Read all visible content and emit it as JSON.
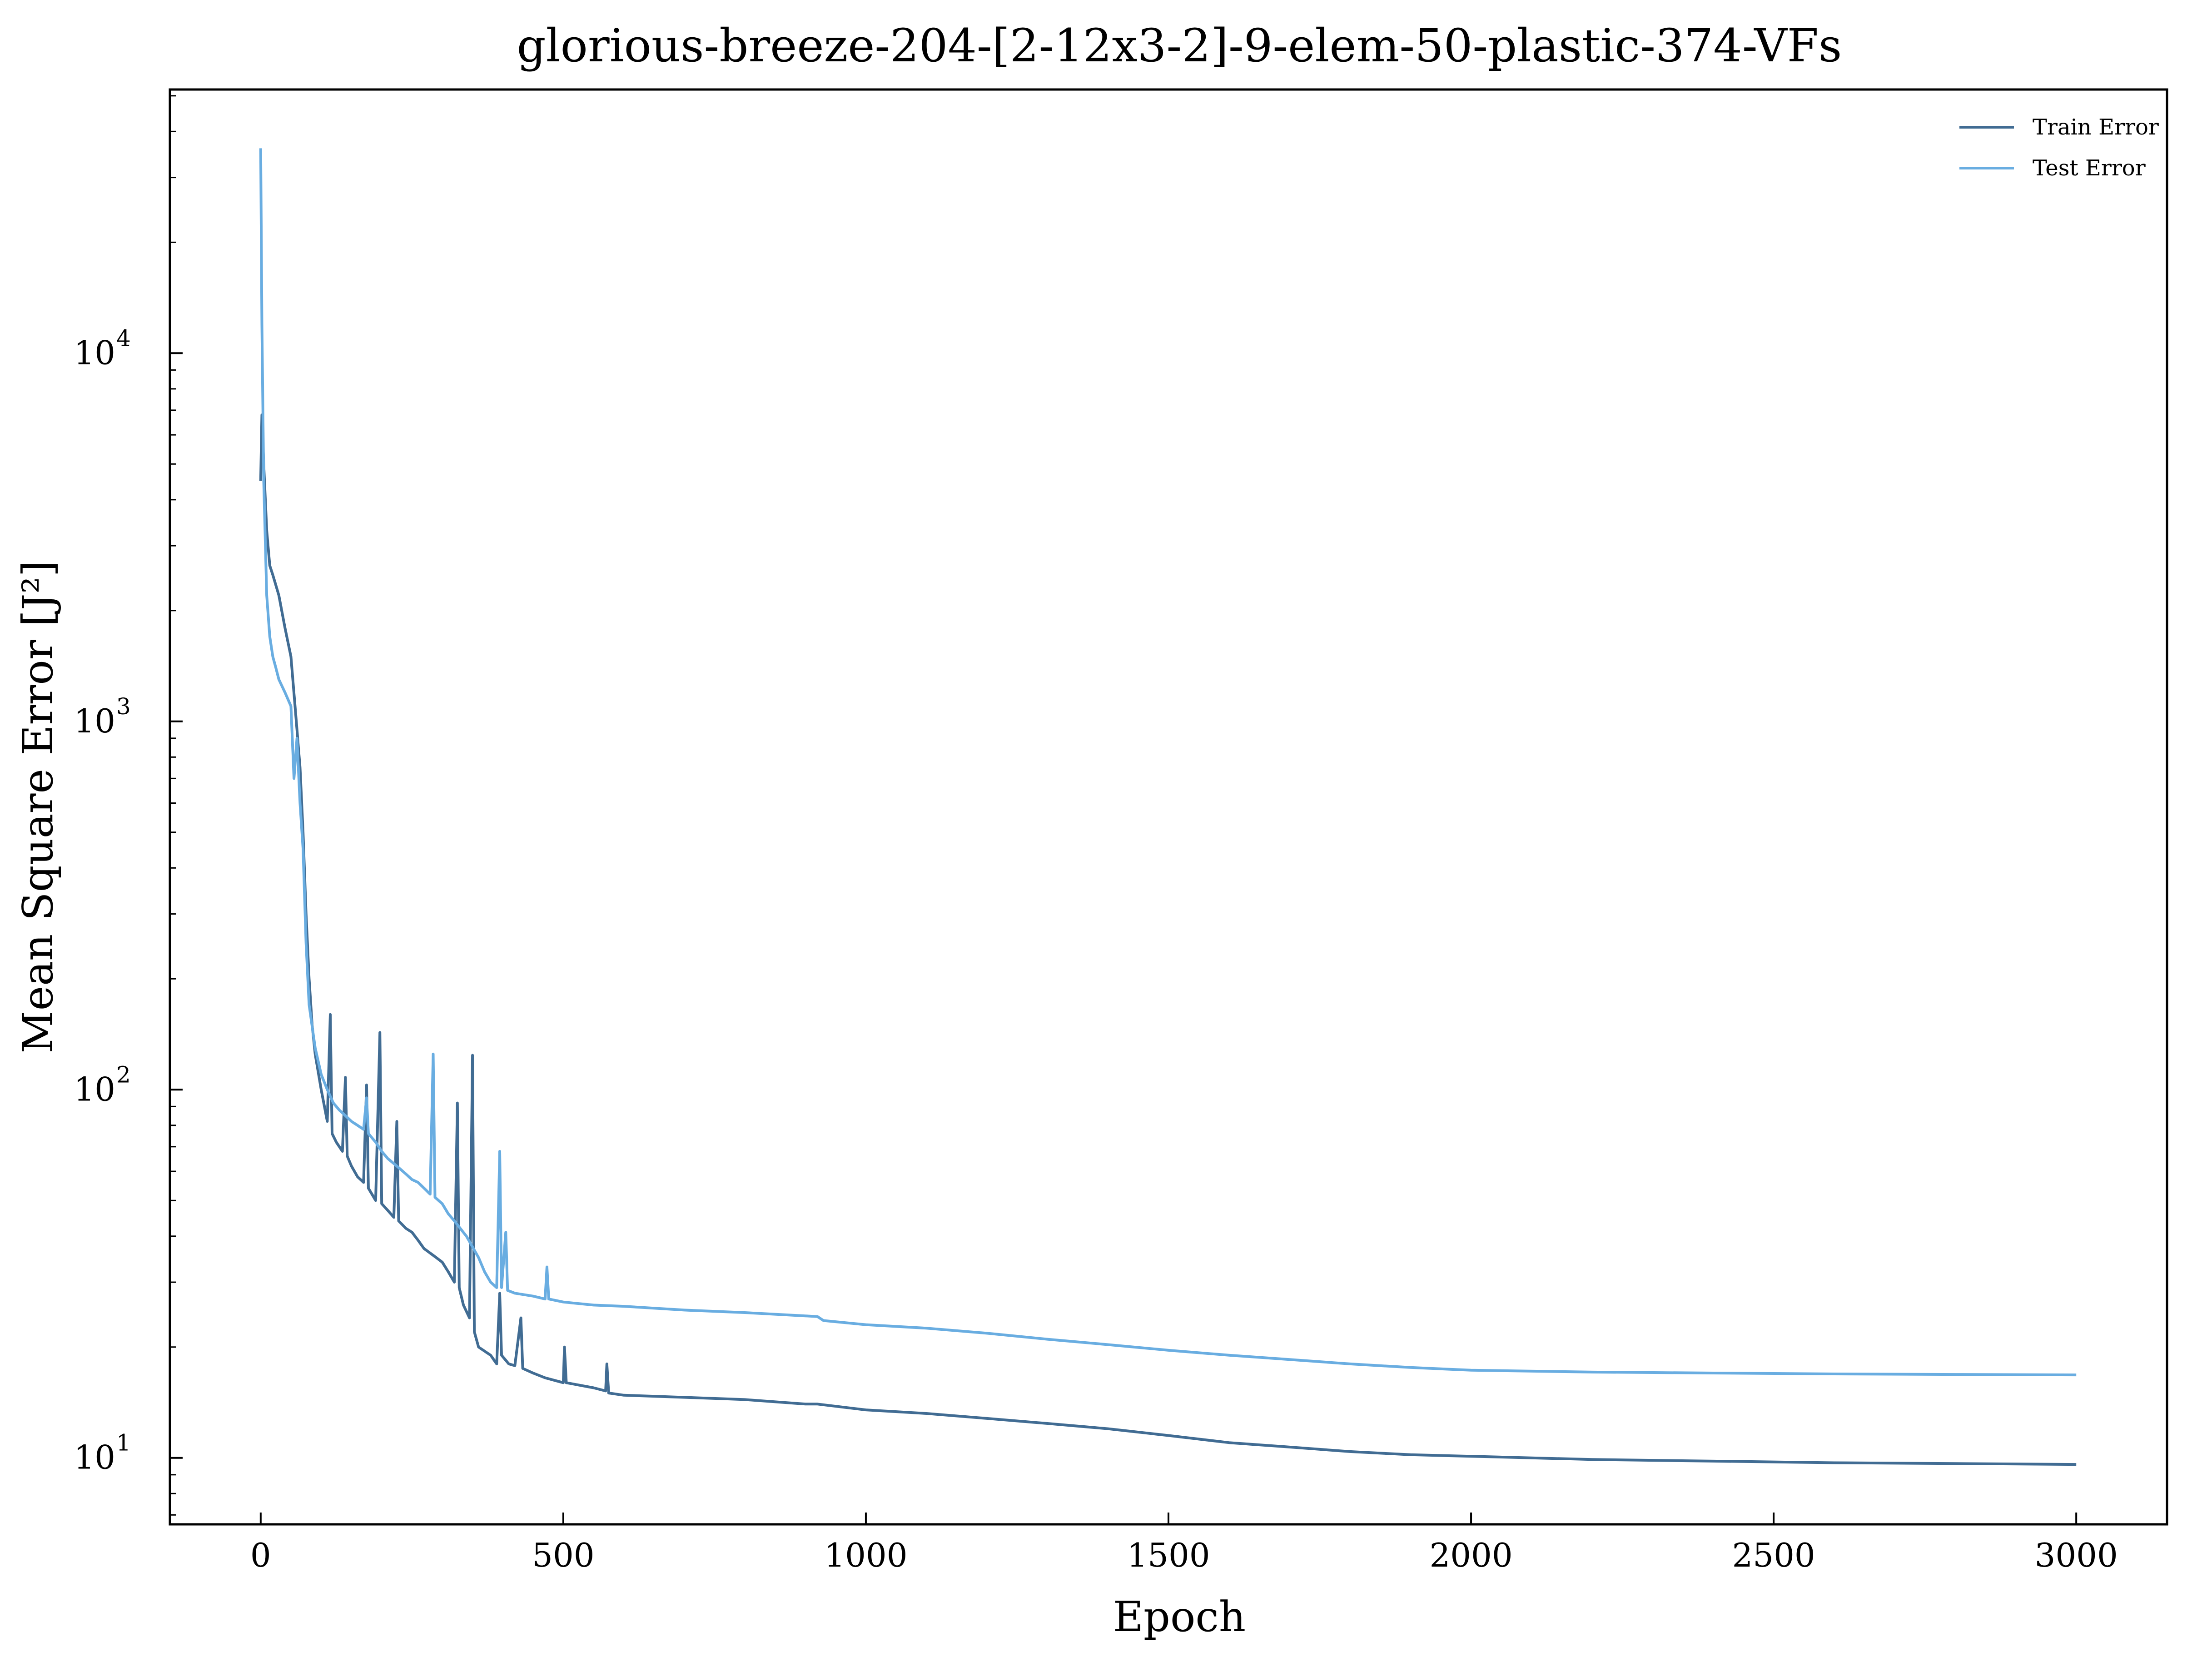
{
  "chart_data": {
    "type": "line",
    "title": "glorious-breeze-204-[2-12x3-2]-9-elem-50-plastic-374-VFs",
    "xlabel": "Epoch",
    "ylabel": "Mean Square Error [J²]",
    "xlim": [
      -150,
      3150
    ],
    "ylim": [
      6.6,
      52000
    ],
    "y_scale": "log",
    "x_ticks": [
      0,
      500,
      1000,
      1500,
      2000,
      2500,
      3000
    ],
    "y_ticks": [
      {
        "value": 10,
        "base": "10",
        "exp": "1"
      },
      {
        "value": 100,
        "base": "10",
        "exp": "2"
      },
      {
        "value": 1000,
        "base": "10",
        "exp": "3"
      },
      {
        "value": 10000,
        "base": "10",
        "exp": "4"
      }
    ],
    "grid": false,
    "legend_position": "top-right",
    "series": [
      {
        "name": "Train Error",
        "color": "#416c93",
        "points": [
          [
            0,
            4500
          ],
          [
            2,
            6800
          ],
          [
            5,
            5000
          ],
          [
            10,
            3300
          ],
          [
            15,
            2650
          ],
          [
            20,
            2500
          ],
          [
            30,
            2200
          ],
          [
            40,
            1800
          ],
          [
            50,
            1500
          ],
          [
            60,
            950
          ],
          [
            65,
            750
          ],
          [
            70,
            500
          ],
          [
            75,
            300
          ],
          [
            80,
            200
          ],
          [
            85,
            150
          ],
          [
            90,
            125
          ],
          [
            100,
            100
          ],
          [
            110,
            82
          ],
          [
            115,
            160
          ],
          [
            118,
            76
          ],
          [
            125,
            72
          ],
          [
            135,
            68
          ],
          [
            140,
            108
          ],
          [
            143,
            66
          ],
          [
            150,
            62
          ],
          [
            160,
            58
          ],
          [
            170,
            56
          ],
          [
            175,
            103
          ],
          [
            178,
            54
          ],
          [
            190,
            50
          ],
          [
            197,
            143
          ],
          [
            200,
            49
          ],
          [
            210,
            47
          ],
          [
            220,
            45
          ],
          [
            225,
            82
          ],
          [
            228,
            44
          ],
          [
            240,
            42
          ],
          [
            250,
            41
          ],
          [
            260,
            39
          ],
          [
            270,
            37
          ],
          [
            280,
            36
          ],
          [
            290,
            35
          ],
          [
            300,
            34
          ],
          [
            310,
            32
          ],
          [
            320,
            30
          ],
          [
            325,
            92
          ],
          [
            328,
            29
          ],
          [
            335,
            26
          ],
          [
            345,
            24
          ],
          [
            350,
            124
          ],
          [
            353,
            22
          ],
          [
            360,
            20
          ],
          [
            380,
            19
          ],
          [
            390,
            18
          ],
          [
            395,
            28
          ],
          [
            398,
            19
          ],
          [
            410,
            18
          ],
          [
            420,
            17.8
          ],
          [
            430,
            24
          ],
          [
            433,
            17.5
          ],
          [
            450,
            17
          ],
          [
            470,
            16.5
          ],
          [
            500,
            16
          ],
          [
            502,
            20
          ],
          [
            505,
            16
          ],
          [
            550,
            15.5
          ],
          [
            570,
            15.2
          ],
          [
            572,
            18
          ],
          [
            575,
            15
          ],
          [
            600,
            14.8
          ],
          [
            700,
            14.6
          ],
          [
            800,
            14.4
          ],
          [
            900,
            14
          ],
          [
            920,
            14
          ],
          [
            1000,
            13.5
          ],
          [
            1100,
            13.2
          ],
          [
            1200,
            12.8
          ],
          [
            1300,
            12.4
          ],
          [
            1400,
            12
          ],
          [
            1500,
            11.5
          ],
          [
            1600,
            11
          ],
          [
            1700,
            10.7
          ],
          [
            1800,
            10.4
          ],
          [
            1900,
            10.2
          ],
          [
            2000,
            10.1
          ],
          [
            2200,
            9.9
          ],
          [
            2400,
            9.8
          ],
          [
            2600,
            9.7
          ],
          [
            2800,
            9.65
          ],
          [
            3000,
            9.6
          ]
        ]
      },
      {
        "name": "Test Error",
        "color": "#69ade1",
        "points": [
          [
            0,
            36000
          ],
          [
            2,
            12000
          ],
          [
            5,
            4500
          ],
          [
            10,
            2200
          ],
          [
            15,
            1700
          ],
          [
            20,
            1500
          ],
          [
            25,
            1400
          ],
          [
            30,
            1300
          ],
          [
            40,
            1200
          ],
          [
            50,
            1100
          ],
          [
            55,
            700
          ],
          [
            60,
            900
          ],
          [
            65,
            600
          ],
          [
            70,
            450
          ],
          [
            75,
            250
          ],
          [
            80,
            170
          ],
          [
            90,
            130
          ],
          [
            100,
            110
          ],
          [
            110,
            100
          ],
          [
            120,
            92
          ],
          [
            130,
            88
          ],
          [
            140,
            85
          ],
          [
            150,
            82
          ],
          [
            160,
            80
          ],
          [
            170,
            78
          ],
          [
            175,
            95
          ],
          [
            178,
            76
          ],
          [
            190,
            72
          ],
          [
            200,
            68
          ],
          [
            210,
            65
          ],
          [
            220,
            63
          ],
          [
            230,
            61
          ],
          [
            240,
            59
          ],
          [
            250,
            57
          ],
          [
            260,
            56
          ],
          [
            270,
            54
          ],
          [
            280,
            52
          ],
          [
            285,
            125
          ],
          [
            288,
            51
          ],
          [
            300,
            49
          ],
          [
            310,
            46
          ],
          [
            320,
            44
          ],
          [
            340,
            40
          ],
          [
            360,
            35
          ],
          [
            370,
            32
          ],
          [
            380,
            30
          ],
          [
            390,
            29
          ],
          [
            395,
            68
          ],
          [
            398,
            29
          ],
          [
            405,
            41
          ],
          [
            408,
            28.5
          ],
          [
            420,
            28
          ],
          [
            450,
            27.5
          ],
          [
            470,
            27
          ],
          [
            473,
            33
          ],
          [
            476,
            27
          ],
          [
            500,
            26.5
          ],
          [
            550,
            26
          ],
          [
            600,
            25.8
          ],
          [
            700,
            25.2
          ],
          [
            800,
            24.8
          ],
          [
            900,
            24.3
          ],
          [
            920,
            24.2
          ],
          [
            930,
            23.6
          ],
          [
            1000,
            23
          ],
          [
            1100,
            22.5
          ],
          [
            1200,
            21.8
          ],
          [
            1300,
            21
          ],
          [
            1400,
            20.3
          ],
          [
            1500,
            19.6
          ],
          [
            1600,
            19
          ],
          [
            1700,
            18.5
          ],
          [
            1800,
            18
          ],
          [
            1900,
            17.6
          ],
          [
            2000,
            17.3
          ],
          [
            2200,
            17.1
          ],
          [
            2400,
            17
          ],
          [
            2600,
            16.9
          ],
          [
            2800,
            16.85
          ],
          [
            3000,
            16.8
          ]
        ]
      }
    ]
  }
}
